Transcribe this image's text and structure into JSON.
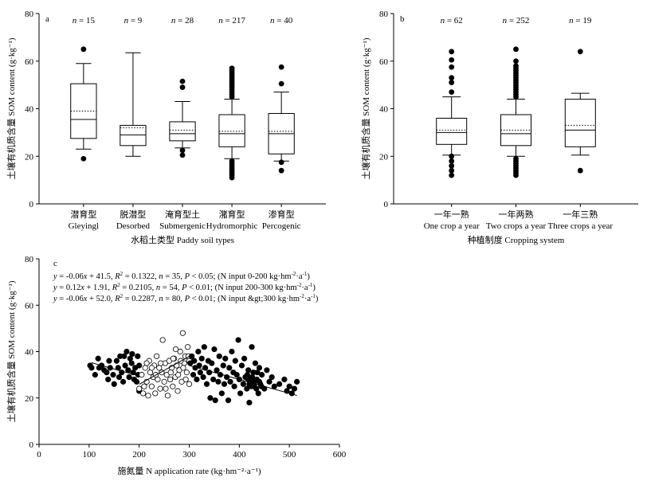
{
  "chart_data": [
    {
      "id": "a",
      "type": "box",
      "panel_label": "a",
      "ylabel": "土壤有机质含量 SOM content (g·kg⁻¹)",
      "xlabel": "水稻土类型 Paddy soil types",
      "ylim": [
        0,
        80
      ],
      "yticks": [
        0,
        20,
        40,
        60,
        80
      ],
      "grid": false,
      "categories": [
        {
          "zh": "潜育型",
          "en": "Gleyingl",
          "n": "n = 15",
          "whisker_low": 23,
          "q1": 27.5,
          "median": 35.5,
          "q3": 50.5,
          "whisker_high": 59,
          "mean": 39,
          "outliers": [
            65,
            19
          ]
        },
        {
          "zh": "脱潜型",
          "en": "Desorbed",
          "n": "n = 9",
          "whisker_low": 20,
          "q1": 24.5,
          "median": 29,
          "q3": 33,
          "whisker_high": 63.5,
          "mean": 32,
          "outliers": []
        },
        {
          "zh": "淹育型土",
          "en": "Submergenic",
          "n": "n = 28",
          "whisker_low": 23.5,
          "q1": 26.5,
          "median": 29.5,
          "q3": 34.5,
          "whisker_high": 43,
          "mean": 31,
          "outliers": [
            51.5,
            49,
            22.5,
            20.5
          ]
        },
        {
          "zh": "潴育型",
          "en": "Hydromorphic",
          "n": "n = 217",
          "whisker_low": 19,
          "q1": 24,
          "median": 29.5,
          "q3": 37.5,
          "whisker_high": 44,
          "mean": 30.5,
          "outliers": [
            57,
            56,
            55,
            54,
            53,
            52,
            51,
            50,
            49,
            48,
            47,
            46,
            45,
            18,
            17,
            16,
            15,
            14,
            13,
            12,
            11
          ]
        },
        {
          "zh": "渗育型",
          "en": "Percogenic",
          "n": "n = 40",
          "whisker_low": 18,
          "q1": 21,
          "median": 29.5,
          "q3": 38,
          "whisker_high": 47,
          "mean": 30.5,
          "outliers": [
            57.5,
            50.5,
            17.5,
            14
          ]
        }
      ]
    },
    {
      "id": "b",
      "type": "box",
      "panel_label": "b",
      "ylabel": "土壤有机质含量 SOM content (g·kg⁻¹)",
      "xlabel": "种植制度 Cropping system",
      "ylim": [
        0,
        80
      ],
      "yticks": [
        0,
        20,
        40,
        60,
        80
      ],
      "grid": false,
      "categories": [
        {
          "zh": "一年一熟",
          "en": "One crop a year",
          "n": "n = 62",
          "whisker_low": 20.5,
          "q1": 25,
          "median": 30,
          "q3": 36,
          "whisker_high": 45,
          "mean": 31,
          "outliers": [
            64,
            60.5,
            57.5,
            53,
            51,
            47,
            20,
            18,
            16,
            14,
            12
          ]
        },
        {
          "zh": "一年两熟",
          "en": "Two crops a year",
          "n": "n = 252",
          "whisker_low": 20,
          "q1": 24.5,
          "median": 29.5,
          "q3": 37.5,
          "whisker_high": 44,
          "mean": 31,
          "outliers": [
            65,
            60,
            58,
            57,
            56,
            55,
            54,
            53,
            52,
            51,
            50,
            49,
            48,
            47,
            46,
            45,
            19,
            18,
            17,
            16,
            15,
            14,
            13,
            12
          ]
        },
        {
          "zh": "一年三熟",
          "en": "Three crops a year",
          "n": "n = 19",
          "whisker_low": 20.5,
          "q1": 24,
          "median": 31,
          "q3": 44,
          "whisker_high": 46.5,
          "mean": 33,
          "outliers": [
            64,
            14
          ]
        }
      ]
    },
    {
      "id": "c",
      "type": "scatter",
      "panel_label": "c",
      "ylabel": "土壤有机质含量 SOM content (g·kg⁻¹)",
      "xlabel": "施氮量 N application rate (kg·hm⁻²·a⁻¹)",
      "xlim": [
        0,
        600
      ],
      "ylim": [
        0,
        80
      ],
      "xticks": [
        0,
        100,
        200,
        300,
        400,
        500,
        600
      ],
      "yticks": [
        0,
        20,
        40,
        60,
        80
      ],
      "grid": false,
      "equations": [
        {
          "y": "y",
          "eq1": " = -0.06",
          "x": "x",
          "eq2": " + 41.5, ",
          "R": "R",
          "sup": "2",
          "eq3": " = 0.1322, ",
          "n": "n",
          "eq4": " = 35, ",
          "P": "P",
          "eq5": " < 0.05; (N input 0-200 kg·hm",
          "u1": "-2",
          "eq6": "·a",
          "u2": "-1",
          "eq7": ")"
        },
        {
          "y": "y",
          "eq1": " = 0.12",
          "x": "x",
          "eq2": " + 1.91, ",
          "R": "R",
          "sup": "2",
          "eq3": " = 0.2105, ",
          "n": "n",
          "eq4": " = 54, ",
          "P": "P",
          "eq5": " < 0.01; (N input 200-300 kg·hm",
          "u1": "-2",
          "eq6": "·a",
          "u2": "-1",
          "eq7": ")"
        },
        {
          "y": "y",
          "eq1": " = -0.06",
          "x": "x",
          "eq2": " + 52.0, ",
          "R": "R",
          "sup": "2",
          "eq3": " = 0.2287, ",
          "n": "n",
          "eq4": " = 80, ",
          "P": "P",
          "eq5": " < 0.01; (N input &gt;300 kg·hm",
          "u1": "-2",
          "eq6": "·a",
          "u2": "-1",
          "eq7": ")"
        }
      ],
      "series": [
        {
          "marker": "filled",
          "points": [
            [
              105,
              33
            ],
            [
              112,
              30
            ],
            [
              118,
              37
            ],
            [
              125,
              34
            ],
            [
              130,
              32
            ],
            [
              135,
              31
            ],
            [
              138,
              28
            ],
            [
              142,
              33
            ],
            [
              148,
              30
            ],
            [
              150,
              26
            ],
            [
              155,
              36
            ],
            [
              158,
              33
            ],
            [
              160,
              29
            ],
            [
              162,
              38
            ],
            [
              165,
              31
            ],
            [
              168,
              27
            ],
            [
              172,
              34
            ],
            [
              175,
              40
            ],
            [
              178,
              32
            ],
            [
              180,
              29
            ],
            [
              182,
              37
            ],
            [
              185,
              35
            ],
            [
              188,
              31
            ],
            [
              190,
              28
            ],
            [
              192,
              33
            ],
            [
              195,
              27
            ],
            [
              197,
              38
            ],
            [
              198,
              30
            ],
            [
              200,
              34
            ],
            [
              200,
              23
            ],
            [
              102,
              34
            ],
            [
              120,
              33
            ],
            [
              140,
              36
            ],
            [
              170,
              38
            ],
            [
              186,
              39
            ]
          ]
        },
        {
          "marker": "open",
          "points": [
            [
              200,
              24
            ],
            [
              205,
              30
            ],
            [
              208,
              22
            ],
            [
              212,
              33
            ],
            [
              215,
              27
            ],
            [
              218,
              21
            ],
            [
              220,
              36
            ],
            [
              222,
              31
            ],
            [
              225,
              25
            ],
            [
              228,
              29
            ],
            [
              230,
              34
            ],
            [
              232,
              22
            ],
            [
              235,
              38
            ],
            [
              237,
              28
            ],
            [
              240,
              33
            ],
            [
              242,
              24
            ],
            [
              245,
              31
            ],
            [
              247,
              45
            ],
            [
              250,
              27
            ],
            [
              252,
              35
            ],
            [
              255,
              30
            ],
            [
              257,
              21
            ],
            [
              260,
              36
            ],
            [
              262,
              28
            ],
            [
              265,
              33
            ],
            [
              267,
              25
            ],
            [
              270,
              37
            ],
            [
              272,
              29
            ],
            [
              275,
              34
            ],
            [
              277,
              23
            ],
            [
              280,
              32
            ],
            [
              282,
              40
            ],
            [
              285,
              27
            ],
            [
              287,
              48
            ],
            [
              290,
              35
            ],
            [
              292,
              38
            ],
            [
              295,
              31
            ],
            [
              297,
              42
            ],
            [
              300,
              36
            ],
            [
              300,
              26
            ],
            [
              210,
              25
            ],
            [
              215,
              35
            ],
            [
              225,
              33
            ],
            [
              233,
              30
            ],
            [
              243,
              35
            ],
            [
              253,
              24
            ],
            [
              263,
              31
            ],
            [
              268,
              37
            ],
            [
              273,
              41
            ],
            [
              278,
              30
            ],
            [
              283,
              36
            ],
            [
              288,
              33
            ],
            [
              293,
              28
            ],
            [
              298,
              38
            ]
          ]
        },
        {
          "marker": "filled",
          "points": [
            [
              302,
              35
            ],
            [
              305,
              38
            ],
            [
              308,
              30
            ],
            [
              310,
              36
            ],
            [
              312,
              33
            ],
            [
              315,
              28
            ],
            [
              318,
              40
            ],
            [
              320,
              34
            ],
            [
              322,
              31
            ],
            [
              325,
              37
            ],
            [
              328,
              29
            ],
            [
              330,
              42
            ],
            [
              332,
              33
            ],
            [
              335,
              26
            ],
            [
              338,
              36
            ],
            [
              340,
              31
            ],
            [
              342,
              20
            ],
            [
              345,
              35
            ],
            [
              348,
              28
            ],
            [
              350,
              41
            ],
            [
              352,
              19
            ],
            [
              355,
              32
            ],
            [
              358,
              27
            ],
            [
              360,
              38
            ],
            [
              362,
              30
            ],
            [
              365,
              22
            ],
            [
              368,
              34
            ],
            [
              370,
              26
            ],
            [
              372,
              37
            ],
            [
              375,
              29
            ],
            [
              378,
              19
            ],
            [
              380,
              33
            ],
            [
              382,
              27
            ],
            [
              385,
              40
            ],
            [
              388,
              31
            ],
            [
              390,
              25
            ],
            [
              392,
              36
            ],
            [
              395,
              30
            ],
            [
              398,
              45
            ],
            [
              400,
              28
            ],
            [
              402,
              22
            ],
            [
              405,
              34
            ],
            [
              408,
              26
            ],
            [
              410,
              37
            ],
            [
              412,
              29
            ],
            [
              415,
              24
            ],
            [
              418,
              32
            ],
            [
              420,
              18
            ],
            [
              422,
              27
            ],
            [
              425,
              42
            ],
            [
              428,
              31
            ],
            [
              430,
              25
            ],
            [
              432,
              35
            ],
            [
              435,
              28
            ],
            [
              438,
              22
            ],
            [
              440,
              33
            ],
            [
              442,
              26
            ],
            [
              445,
              30
            ],
            [
              450,
              24
            ],
            [
              455,
              32
            ],
            [
              460,
              27
            ],
            [
              465,
              29
            ],
            [
              470,
              25
            ],
            [
              480,
              26
            ],
            [
              490,
              28
            ],
            [
              495,
              23
            ],
            [
              500,
              25
            ],
            [
              505,
              22
            ],
            [
              510,
              24
            ],
            [
              515,
              27
            ],
            [
              420,
              26
            ],
            [
              418,
              28
            ],
            [
              416,
              30
            ],
            [
              424,
              25
            ],
            [
              426,
              29
            ],
            [
              430,
              27
            ],
            [
              434,
              24
            ],
            [
              436,
              31
            ],
            [
              440,
              27
            ],
            [
              444,
              25
            ]
          ]
        }
      ],
      "fit_lines": [
        {
          "x": [
            105,
            200
          ],
          "y": [
            35.2,
            29.5
          ]
        },
        {
          "x": [
            200,
            300
          ],
          "y": [
            25.9,
            37.9
          ]
        },
        {
          "x": [
            300,
            515
          ],
          "y": [
            34.0,
            21.1
          ]
        }
      ]
    }
  ]
}
